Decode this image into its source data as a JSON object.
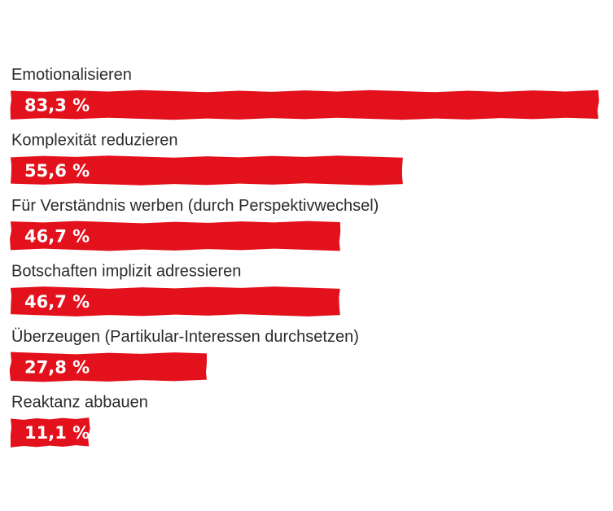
{
  "chart_data": {
    "type": "bar",
    "orientation": "horizontal",
    "title": "",
    "xlabel": "",
    "ylabel": "",
    "xlim": [
      0,
      83.3
    ],
    "grid": false,
    "legend": "none",
    "bar_color": "#e3111c",
    "categories": [
      "Emotionalisieren",
      "Komplexität reduzieren",
      "Für Verständnis werben (durch Perspektivwechsel)",
      "Botschaften implizit adressieren",
      "Überzeugen (Partikular-Interessen durchsetzen)",
      "Reaktanz abbauen"
    ],
    "values": [
      83.3,
      55.6,
      46.7,
      46.7,
      27.8,
      11.1
    ],
    "value_labels": [
      "83,3 %",
      "55,6 %",
      "46,7 %",
      "46,7 %",
      "27,8 %",
      "11,1 %"
    ]
  }
}
